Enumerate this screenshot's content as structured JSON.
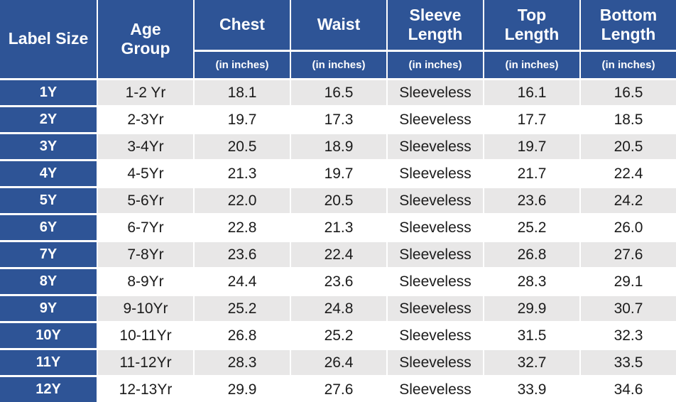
{
  "colors": {
    "header_blue": "#2E5496",
    "band_gray": "#E8E7E7",
    "band_white": "#FFFFFF",
    "gridline_white": "#FFFFFF",
    "header_text": "#FFFFFF",
    "data_text": "#1B1B1B"
  },
  "header": {
    "label_size": "Label Size",
    "age_line1": "Age",
    "age_line2": "Group",
    "chest": "Chest",
    "waist": "Waist",
    "sleeve_line1": "Sleeve",
    "sleeve_line2": "Length",
    "top_line1": "Top",
    "top_line2": "Length",
    "bottom_line1": "Bottom",
    "bottom_line2": "Length",
    "unit": "(in inches)"
  },
  "rows": [
    {
      "label": "1Y",
      "age": "1-2 Yr",
      "chest": "18.1",
      "waist": "16.5",
      "sleeve": "Sleeveless",
      "top": "16.1",
      "bottom": "16.5"
    },
    {
      "label": "2Y",
      "age": "2-3Yr",
      "chest": "19.7",
      "waist": "17.3",
      "sleeve": "Sleeveless",
      "top": "17.7",
      "bottom": "18.5"
    },
    {
      "label": "3Y",
      "age": "3-4Yr",
      "chest": "20.5",
      "waist": "18.9",
      "sleeve": "Sleeveless",
      "top": "19.7",
      "bottom": "20.5"
    },
    {
      "label": "4Y",
      "age": "4-5Yr",
      "chest": "21.3",
      "waist": "19.7",
      "sleeve": "Sleeveless",
      "top": "21.7",
      "bottom": "22.4"
    },
    {
      "label": "5Y",
      "age": "5-6Yr",
      "chest": "22.0",
      "waist": "20.5",
      "sleeve": "Sleeveless",
      "top": "23.6",
      "bottom": "24.2"
    },
    {
      "label": "6Y",
      "age": "6-7Yr",
      "chest": "22.8",
      "waist": "21.3",
      "sleeve": "Sleeveless",
      "top": "25.2",
      "bottom": "26.0"
    },
    {
      "label": "7Y",
      "age": "7-8Yr",
      "chest": "23.6",
      "waist": "22.4",
      "sleeve": "Sleeveless",
      "top": "26.8",
      "bottom": "27.6"
    },
    {
      "label": "8Y",
      "age": "8-9Yr",
      "chest": "24.4",
      "waist": "23.6",
      "sleeve": "Sleeveless",
      "top": "28.3",
      "bottom": "29.1"
    },
    {
      "label": "9Y",
      "age": "9-10Yr",
      "chest": "25.2",
      "waist": "24.8",
      "sleeve": "Sleeveless",
      "top": "29.9",
      "bottom": "30.7"
    },
    {
      "label": "10Y",
      "age": "10-11Yr",
      "chest": "26.8",
      "waist": "25.2",
      "sleeve": "Sleeveless",
      "top": "31.5",
      "bottom": "32.3"
    },
    {
      "label": "11Y",
      "age": "11-12Yr",
      "chest": "28.3",
      "waist": "26.4",
      "sleeve": "Sleeveless",
      "top": "32.7",
      "bottom": "33.5"
    },
    {
      "label": "12Y",
      "age": "12-13Yr",
      "chest": "29.9",
      "waist": "27.6",
      "sleeve": "Sleeveless",
      "top": "33.9",
      "bottom": "34.6"
    }
  ],
  "chart_data": {
    "type": "table",
    "columns": [
      "Label Size",
      "Age Group",
      "Chest (in inches)",
      "Waist (in inches)",
      "Sleeve Length (in inches)",
      "Top Length (in inches)",
      "Bottom Length (in inches)"
    ],
    "rows": [
      [
        "1Y",
        "1-2 Yr",
        18.1,
        16.5,
        "Sleeveless",
        16.1,
        16.5
      ],
      [
        "2Y",
        "2-3Yr",
        19.7,
        17.3,
        "Sleeveless",
        17.7,
        18.5
      ],
      [
        "3Y",
        "3-4Yr",
        20.5,
        18.9,
        "Sleeveless",
        19.7,
        20.5
      ],
      [
        "4Y",
        "4-5Yr",
        21.3,
        19.7,
        "Sleeveless",
        21.7,
        22.4
      ],
      [
        "5Y",
        "5-6Yr",
        22.0,
        20.5,
        "Sleeveless",
        23.6,
        24.2
      ],
      [
        "6Y",
        "6-7Yr",
        22.8,
        21.3,
        "Sleeveless",
        25.2,
        26.0
      ],
      [
        "7Y",
        "7-8Yr",
        23.6,
        22.4,
        "Sleeveless",
        26.8,
        27.6
      ],
      [
        "8Y",
        "8-9Yr",
        24.4,
        23.6,
        "Sleeveless",
        28.3,
        29.1
      ],
      [
        "9Y",
        "9-10Yr",
        25.2,
        24.8,
        "Sleeveless",
        29.9,
        30.7
      ],
      [
        "10Y",
        "10-11Yr",
        26.8,
        25.2,
        "Sleeveless",
        31.5,
        32.3
      ],
      [
        "11Y",
        "11-12Yr",
        28.3,
        26.4,
        "Sleeveless",
        32.7,
        33.5
      ],
      [
        "12Y",
        "12-13Yr",
        29.9,
        27.6,
        "Sleeveless",
        33.9,
        34.6
      ]
    ]
  }
}
